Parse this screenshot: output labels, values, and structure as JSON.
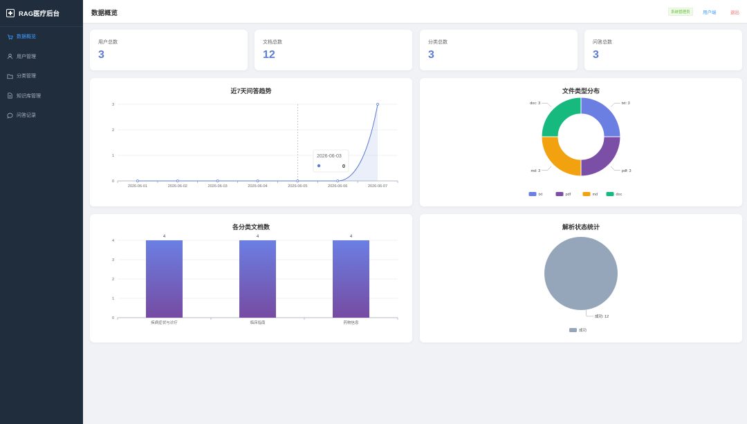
{
  "sidebar": {
    "brand": "RAG医疗后台",
    "items": [
      {
        "label": "数据概览",
        "icon": "cart-icon",
        "active": true
      },
      {
        "label": "用户管理",
        "icon": "user-icon",
        "active": false
      },
      {
        "label": "分类管理",
        "icon": "folder-icon",
        "active": false
      },
      {
        "label": "知识库管理",
        "icon": "document-icon",
        "active": false
      },
      {
        "label": "问答记录",
        "icon": "chat-icon",
        "active": false
      }
    ]
  },
  "header": {
    "title": "数据概览",
    "role_badge": "系统管理员",
    "user_link": "用户端",
    "logout": "退出"
  },
  "stats": [
    {
      "label": "用户总数",
      "value": "3"
    },
    {
      "label": "文档总数",
      "value": "12"
    },
    {
      "label": "分类总数",
      "value": "3"
    },
    {
      "label": "问答总数",
      "value": "3"
    }
  ],
  "colors": {
    "accent": "#5b7bd5",
    "sidebar_bg": "#1f2d3d",
    "active_menu": "#409eff"
  },
  "chart_data": [
    {
      "type": "line",
      "title": "近7天问答趋势",
      "x": [
        "2026-06-01",
        "2026-06-02",
        "2026-06-03",
        "2026-06-04",
        "2026-06-05",
        "2026-06-06",
        "2026-06-07"
      ],
      "series": [
        {
          "values": [
            0,
            0,
            0,
            0,
            0,
            0,
            3
          ]
        }
      ],
      "ylim": [
        0,
        3
      ],
      "yticks": [
        "0",
        "1",
        "2",
        "3"
      ],
      "smooth": true,
      "area": true,
      "color": "#5b7bd5",
      "tooltip": {
        "date": "2026-06-03",
        "value": "0"
      }
    },
    {
      "type": "pie",
      "title": "文件类型分布",
      "donut": true,
      "slices": [
        {
          "name": "txt",
          "value": 3,
          "label": "txt: 3",
          "color": "#6b7fe3"
        },
        {
          "name": "pdf",
          "value": 3,
          "label": "pdf: 3",
          "color": "#7b4fa6"
        },
        {
          "name": "md",
          "value": 3,
          "label": "md: 3",
          "color": "#f2a10f"
        },
        {
          "name": "doc",
          "value": 3,
          "label": "doc: 3",
          "color": "#16b97e"
        }
      ],
      "legend": "bottom"
    },
    {
      "type": "bar",
      "title": "各分类文档数",
      "categories": [
        "疾病症状与诊疗",
        "临床指南",
        "药物信息"
      ],
      "values": [
        4,
        4,
        4
      ],
      "value_labels": [
        "4",
        "4",
        "4"
      ],
      "ylim": [
        0,
        4
      ],
      "yticks": [
        "0",
        "1",
        "2",
        "3",
        "4"
      ],
      "gradient": [
        "#6b7fe3",
        "#764ba2"
      ]
    },
    {
      "type": "pie",
      "title": "解析状态统计",
      "slices": [
        {
          "name": "成功",
          "value": 12,
          "label": "成功: 12",
          "color": "#95a5ba"
        }
      ],
      "legend": "bottom"
    }
  ]
}
